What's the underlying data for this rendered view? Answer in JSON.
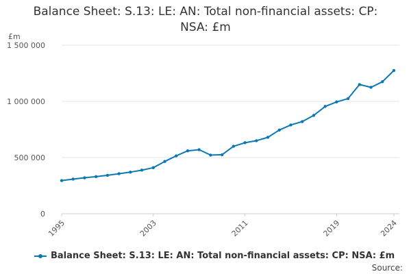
{
  "chart_data": {
    "type": "line",
    "title_lines": [
      "Balance Sheet: S.13: LE: AN: Total non-financial assets: CP:",
      "NSA: £m"
    ],
    "ylabel": "£m",
    "ylim": [
      0,
      1500000
    ],
    "y_ticks": [
      {
        "value": 0,
        "label": "0"
      },
      {
        "value": 500000,
        "label": "500 000"
      },
      {
        "value": 1000000,
        "label": "1 000 000"
      },
      {
        "value": 1500000,
        "label": "1 500 000"
      }
    ],
    "x_tick_labels": [
      "1995",
      "2003",
      "2011",
      "2019",
      "2024"
    ],
    "xlim": [
      1995,
      2024
    ],
    "series": [
      {
        "name": "Balance Sheet: S.13: LE: AN: Total non-financial assets: CP: NSA: £m",
        "color": "#0a78b4",
        "x": [
          1995,
          1996,
          1997,
          1998,
          1999,
          2000,
          2001,
          2002,
          2003,
          2004,
          2005,
          2006,
          2007,
          2008,
          2009,
          2010,
          2011,
          2012,
          2013,
          2014,
          2015,
          2016,
          2017,
          2018,
          2019,
          2020,
          2021,
          2022,
          2023,
          2024
        ],
        "values": [
          295000,
          308000,
          320000,
          330000,
          342000,
          356000,
          370000,
          388000,
          410000,
          465000,
          515000,
          560000,
          570000,
          522000,
          525000,
          600000,
          632000,
          650000,
          680000,
          745000,
          790000,
          820000,
          875000,
          955000,
          995000,
          1025000,
          1150000,
          1125000,
          1175000,
          1275000
        ]
      }
    ],
    "grid": true,
    "legend_position": "bottom",
    "source_label": "Source:"
  }
}
